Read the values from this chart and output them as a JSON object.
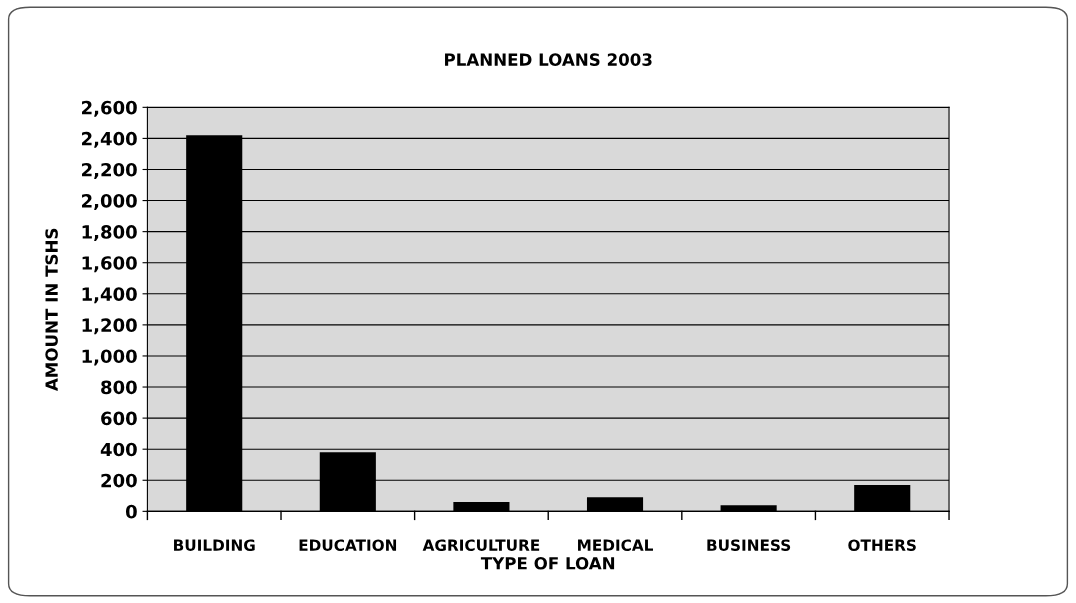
{
  "chart_data": {
    "type": "bar",
    "title": "PLANNED LOANS 2003",
    "xlabel": "TYPE OF LOAN",
    "ylabel": "AMOUNT IN TSHS",
    "categories": [
      "BUILDING",
      "EDUCATION",
      "AGRICULTURE",
      "MEDICAL",
      "BUSINESS",
      "OTHERS"
    ],
    "values": [
      2420,
      380,
      60,
      90,
      40,
      170
    ],
    "color": "#000000",
    "ylim": [
      0,
      2600
    ],
    "yticks": [
      0,
      {
        "value": 200,
        "label": "200"
      },
      {
        "value": 400,
        "label": "400"
      },
      {
        "value": 600,
        "label": "600"
      },
      {
        "value": 800,
        "label": "800"
      },
      {
        "value": 1000,
        "label": "1,000"
      },
      {
        "value": 1200,
        "label": "1,200"
      },
      {
        "value": 1400,
        "label": "1,400"
      },
      {
        "value": 1600,
        "label": "1,600"
      },
      {
        "value": 1800,
        "label": "1,800"
      },
      {
        "value": 2000,
        "label": "2,000"
      },
      {
        "value": 2200,
        "label": "2,200"
      },
      {
        "value": 2400,
        "label": "2,400"
      },
      {
        "value": 2600,
        "label": "2,600"
      }
    ],
    "grid": "y",
    "legend": false
  }
}
